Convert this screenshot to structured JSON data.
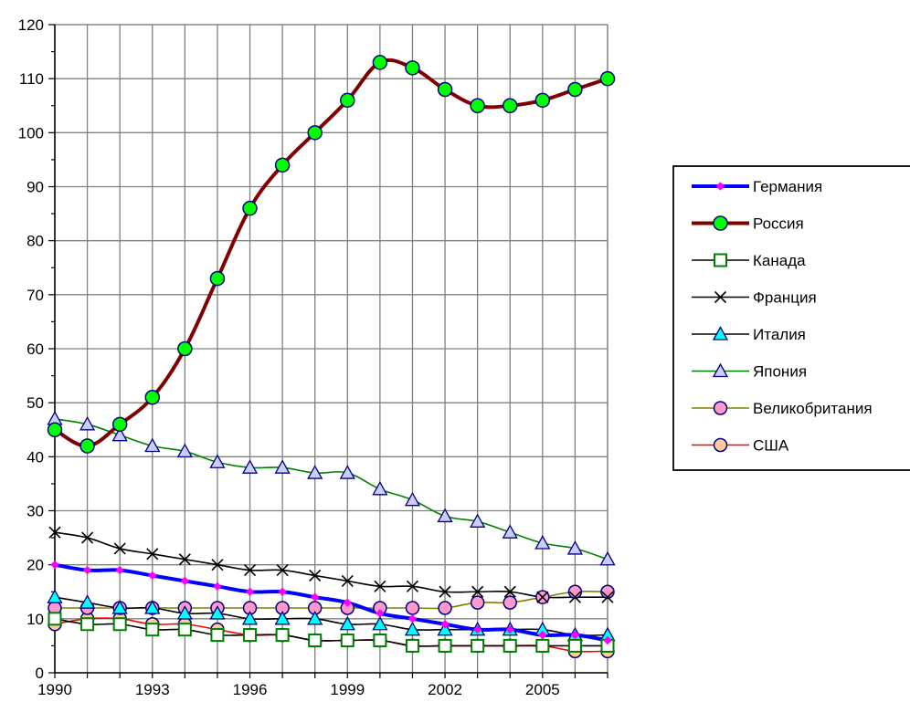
{
  "chart_data": {
    "type": "line",
    "title": "",
    "xlabel": "",
    "ylabel": "",
    "xlim": [
      1990,
      2007
    ],
    "ylim": [
      0,
      120
    ],
    "x": [
      1990,
      1991,
      1992,
      1993,
      1994,
      1995,
      1996,
      1997,
      1998,
      1999,
      2000,
      2001,
      2002,
      2003,
      2004,
      2005,
      2006,
      2007
    ],
    "x_tick_labels": [
      "1990",
      "1993",
      "1996",
      "1999",
      "2002",
      "2005"
    ],
    "x_tick_values": [
      1990,
      1993,
      1996,
      1999,
      2002,
      2005
    ],
    "y_ticks": [
      0,
      10,
      20,
      30,
      40,
      50,
      60,
      70,
      80,
      90,
      100,
      110,
      120
    ],
    "grid": "both",
    "legend_position": "right",
    "series": [
      {
        "name": "Германия",
        "color": "#0000ff",
        "marker": "diamond",
        "marker_fill": "#ff00ff",
        "line_width": "thick",
        "values": [
          20,
          19,
          19,
          18,
          17,
          16,
          15,
          15,
          14,
          13,
          11,
          10,
          9,
          8,
          8,
          7,
          7,
          6
        ]
      },
      {
        "name": "Россия",
        "color": "#800000",
        "marker": "circle",
        "marker_fill": "#00ff00",
        "line_width": "thick",
        "values": [
          45,
          42,
          46,
          51,
          60,
          73,
          86,
          94,
          100,
          106,
          113,
          112,
          108,
          105,
          105,
          106,
          108,
          110
        ]
      },
      {
        "name": "Канада",
        "color": "#000000",
        "marker": "square",
        "marker_fill": "#ffffff",
        "marker_stroke": "#008000",
        "line_width": "thin",
        "values": [
          10,
          9,
          9,
          8,
          8,
          7,
          7,
          7,
          6,
          6,
          6,
          5,
          5,
          5,
          5,
          5,
          5,
          5
        ]
      },
      {
        "name": "Франция",
        "color": "#000000",
        "marker": "x",
        "marker_fill": "none",
        "line_width": "thin",
        "values": [
          26,
          25,
          23,
          22,
          21,
          20,
          19,
          19,
          18,
          17,
          16,
          16,
          15,
          15,
          15,
          14,
          14,
          14
        ]
      },
      {
        "name": "Италия",
        "color": "#000000",
        "marker": "triangle",
        "marker_fill": "#00ffff",
        "line_width": "thin",
        "values": [
          14,
          13,
          12,
          12,
          11,
          11,
          10,
          10,
          10,
          9,
          9,
          8,
          8,
          8,
          8,
          8,
          7,
          7
        ]
      },
      {
        "name": "Япония",
        "color": "#008000",
        "marker": "triangle",
        "marker_fill": "#ccccff",
        "line_width": "thin",
        "values": [
          47,
          46,
          44,
          42,
          41,
          39,
          38,
          38,
          37,
          37,
          34,
          32,
          29,
          28,
          26,
          24,
          23,
          21
        ]
      },
      {
        "name": "Великобритания",
        "color": "#808000",
        "marker": "circle",
        "marker_fill": "#ff99cc",
        "line_width": "thin",
        "values": [
          12,
          12,
          12,
          12,
          12,
          12,
          12,
          12,
          12,
          12,
          12,
          12,
          12,
          13,
          13,
          14,
          15,
          15
        ]
      },
      {
        "name": "США",
        "color": "#ff0000",
        "marker": "circle",
        "marker_fill": "#ffcc99",
        "line_width": "thin",
        "values": [
          9,
          10,
          10,
          9,
          9,
          8,
          7,
          7,
          6,
          6,
          6,
          5,
          5,
          5,
          5,
          5,
          4,
          4
        ]
      }
    ]
  }
}
